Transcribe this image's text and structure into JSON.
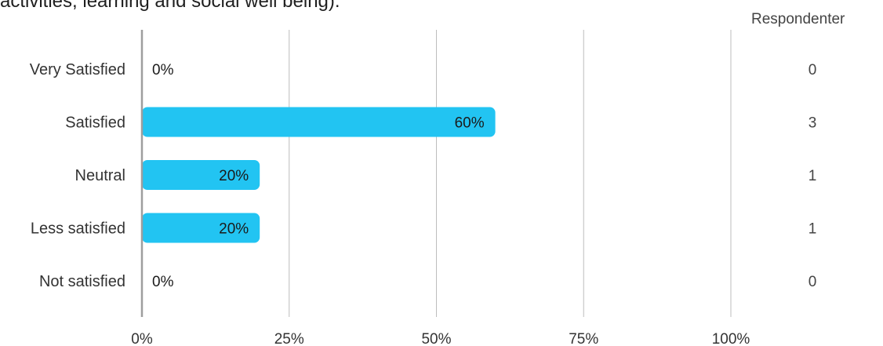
{
  "title_fragment": "activities, learning and social well being).",
  "respondent_header": "Respondenter",
  "colors": {
    "bar": "#22c4f2",
    "grid": "#bdbdbd",
    "axis": "#9e9e9e",
    "text": "#333333"
  },
  "chart_data": {
    "type": "bar",
    "orientation": "horizontal",
    "categories": [
      "Very Satisfied",
      "Satisfied",
      "Neutral",
      "Less satisfied",
      "Not satisfied"
    ],
    "values": [
      0,
      60,
      20,
      20,
      0
    ],
    "value_labels": [
      "0%",
      "60%",
      "20%",
      "20%",
      "0%"
    ],
    "respondents": [
      "0",
      "3",
      "1",
      "1",
      "0"
    ],
    "x_ticks": [
      0,
      25,
      50,
      75,
      100
    ],
    "x_tick_labels": [
      "0%",
      "25%",
      "50%",
      "75%",
      "100%"
    ],
    "xlim": [
      0,
      100
    ],
    "grid": true
  }
}
